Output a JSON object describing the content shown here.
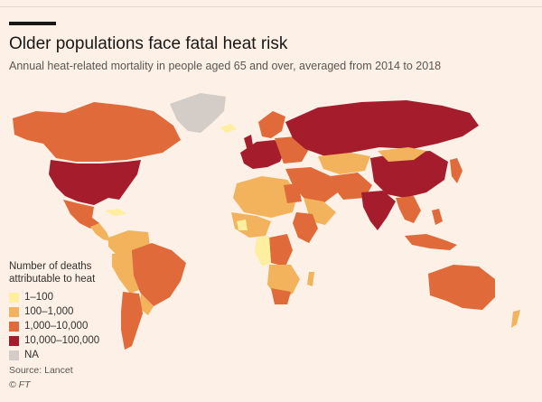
{
  "header": {
    "title": "Older populations face fatal heat risk",
    "subtitle": "Annual heat-related mortality in people aged 65 and over, averaged from 2014 to 2018"
  },
  "colors": {
    "background": "#fdf0e6",
    "band_1": "#fdeea0",
    "band_2": "#f2b35c",
    "band_3": "#e06a3a",
    "band_4": "#a51d2c",
    "na": "#d4ccc6"
  },
  "legend": {
    "title_line1": "Number of deaths",
    "title_line2": "attributable to heat",
    "items": [
      {
        "label": "1–100",
        "color": "#fdeea0"
      },
      {
        "label": "100–1,000",
        "color": "#f2b35c"
      },
      {
        "label": "1,000–10,000",
        "color": "#e06a3a"
      },
      {
        "label": "10,000–100,000",
        "color": "#a51d2c"
      },
      {
        "label": "NA",
        "color": "#d4ccc6"
      }
    ]
  },
  "footer": {
    "source": "Source: Lancet",
    "credit": "© FT"
  }
}
